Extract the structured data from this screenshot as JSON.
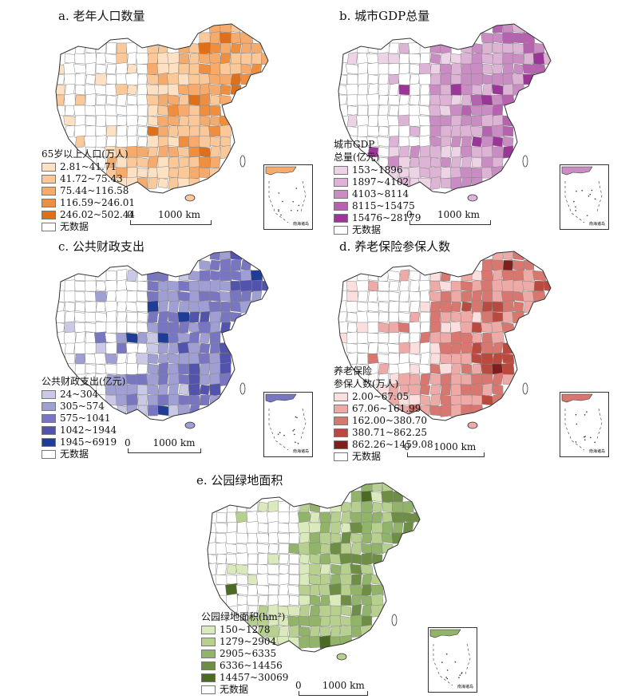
{
  "panels": [
    {
      "key": "a",
      "title": "a. 老年人口数量",
      "legend_title": "65岁以上人口(万人)",
      "colors": [
        "#fde1c2",
        "#fbc999",
        "#f6aa6b",
        "#ef8e3f",
        "#e06f1a"
      ],
      "classes": [
        "2.81~41.71",
        "41.72~75.43",
        "75.44~116.58",
        "116.59~246.01",
        "246.02~502.44"
      ],
      "no_data": "无数据",
      "scale": {
        "zero": "0",
        "label": "1000 km"
      },
      "inset_caption": "南海诸岛"
    },
    {
      "key": "b",
      "title": "b. 城市GDP总量",
      "legend_title_lines": [
        "城市GDP",
        "总量(亿元)"
      ],
      "colors": [
        "#ecd3e6",
        "#ddb3d6",
        "#c98cc3",
        "#b563ae",
        "#9b3597"
      ],
      "classes": [
        "153~1896",
        "1897~4102",
        "4103~8114",
        "8115~15475",
        "15476~28179"
      ],
      "no_data": "无数据",
      "scale": {
        "zero": "0",
        "label": "1000 km"
      },
      "inset_caption": "南海诸岛"
    },
    {
      "key": "c",
      "title": "c. 公共财政支出",
      "legend_title": "公共财政支出(亿元)",
      "colors": [
        "#c9c9e6",
        "#a09fd3",
        "#7876c0",
        "#5253ad",
        "#1f3d96"
      ],
      "classes": [
        "24~304",
        "305~574",
        "575~1041",
        "1042~1944",
        "1945~6919"
      ],
      "no_data": "无数据",
      "scale": {
        "zero": "0",
        "label": "1000 km"
      },
      "inset_caption": "南海诸岛"
    },
    {
      "key": "d",
      "title": "d. 养老保险参保人数",
      "legend_title_lines": [
        "养老保险",
        "参保人数(万人)"
      ],
      "colors": [
        "#fbdede",
        "#eeaaa6",
        "#d8776f",
        "#b94a40",
        "#7f1e1b"
      ],
      "classes": [
        "2.00~67.05",
        "67.06~161.99",
        "162.00~380.70",
        "380.71~862.25",
        "862.26~1459.08"
      ],
      "no_data": "无数据",
      "scale": {
        "zero": "0",
        "label": "1000 km"
      },
      "inset_caption": "南海诸岛"
    },
    {
      "key": "e",
      "title": "e. 公园绿地面积",
      "legend_title": "公园绿地面积(hm²)",
      "colors": [
        "#dbeabd",
        "#b7d08f",
        "#91b36a",
        "#6e8d45",
        "#4d6a24"
      ],
      "classes": [
        "150~1278",
        "1279~2904",
        "2905~6335",
        "6336~14456",
        "14457~30069"
      ],
      "no_data": "无数据",
      "scale": {
        "zero": "0",
        "label": "1000 km"
      },
      "inset_caption": "南海诸岛"
    }
  ]
}
